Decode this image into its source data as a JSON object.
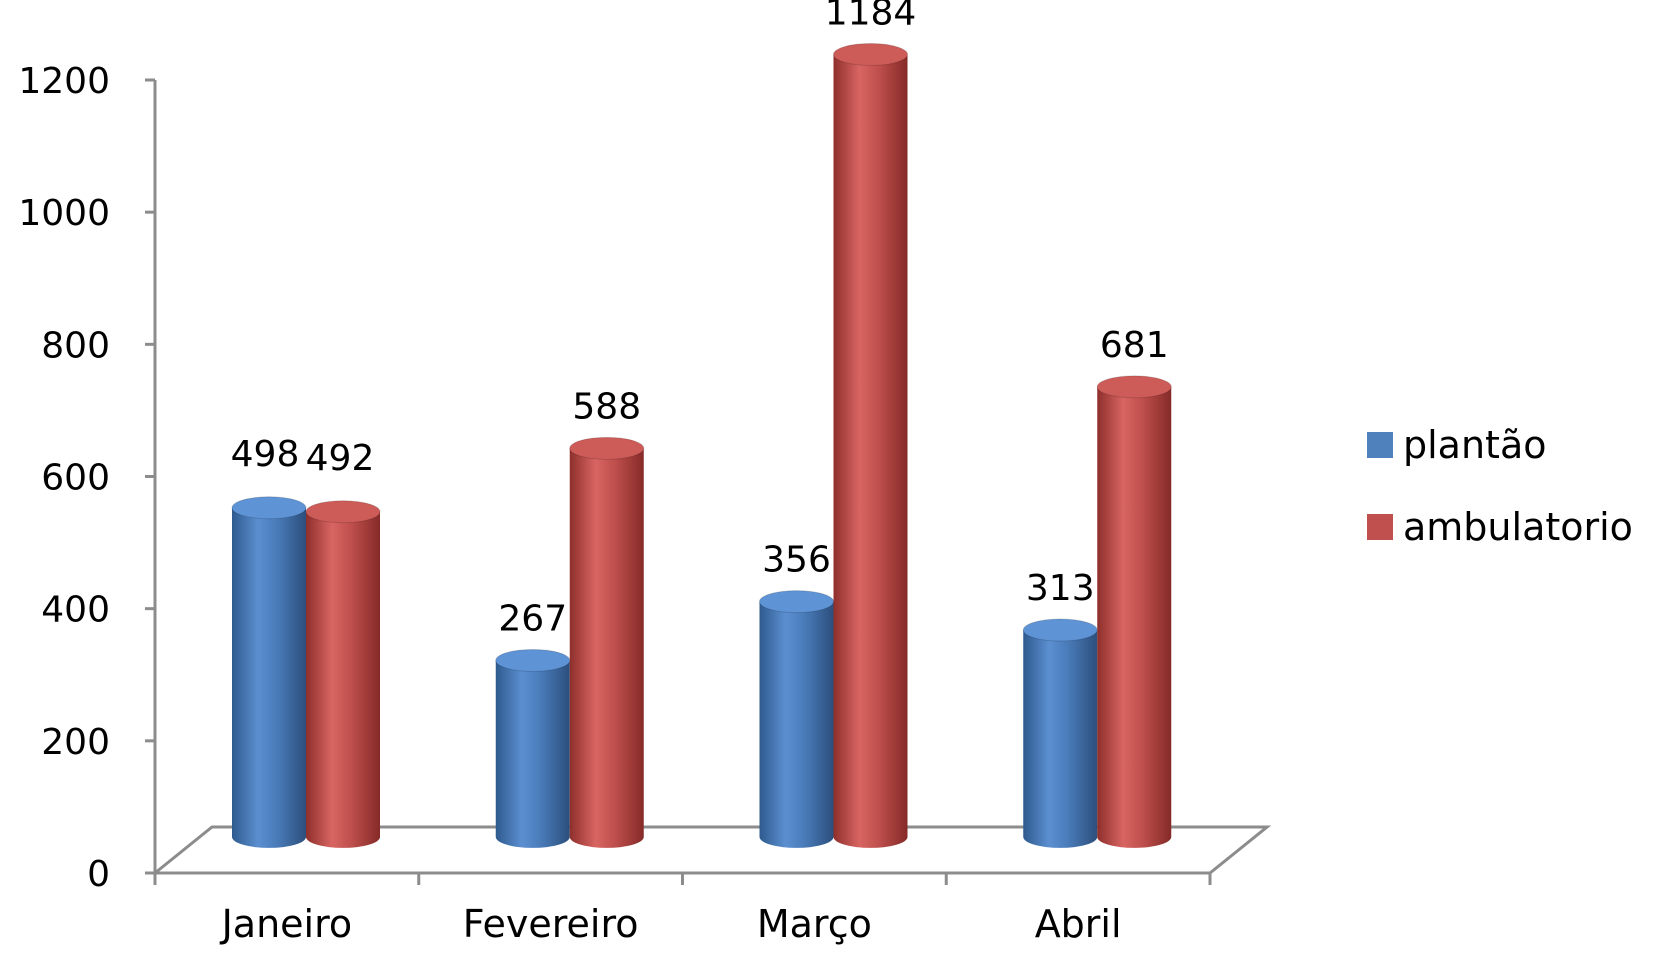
{
  "chart_data": {
    "type": "bar",
    "style": "3d-cylinder",
    "categories": [
      "Janeiro",
      "Fevereiro",
      "Março",
      "Abril"
    ],
    "series": [
      {
        "name": "plantão",
        "values": [
          498,
          267,
          356,
          313
        ],
        "color": "#4F81BD"
      },
      {
        "name": "ambulatorio",
        "values": [
          492,
          588,
          1184,
          681
        ],
        "color": "#C0504D"
      }
    ],
    "data_labels": [
      [
        "498",
        "267",
        "356",
        "313"
      ],
      [
        "492",
        "588",
        "1184",
        "681"
      ]
    ],
    "yticks": [
      "0",
      "200",
      "400",
      "600",
      "800",
      "1000",
      "1200"
    ],
    "ylim": [
      0,
      1200
    ],
    "grid": false,
    "legend_position": "right",
    "title": "",
    "xlabel": "",
    "ylabel": ""
  }
}
